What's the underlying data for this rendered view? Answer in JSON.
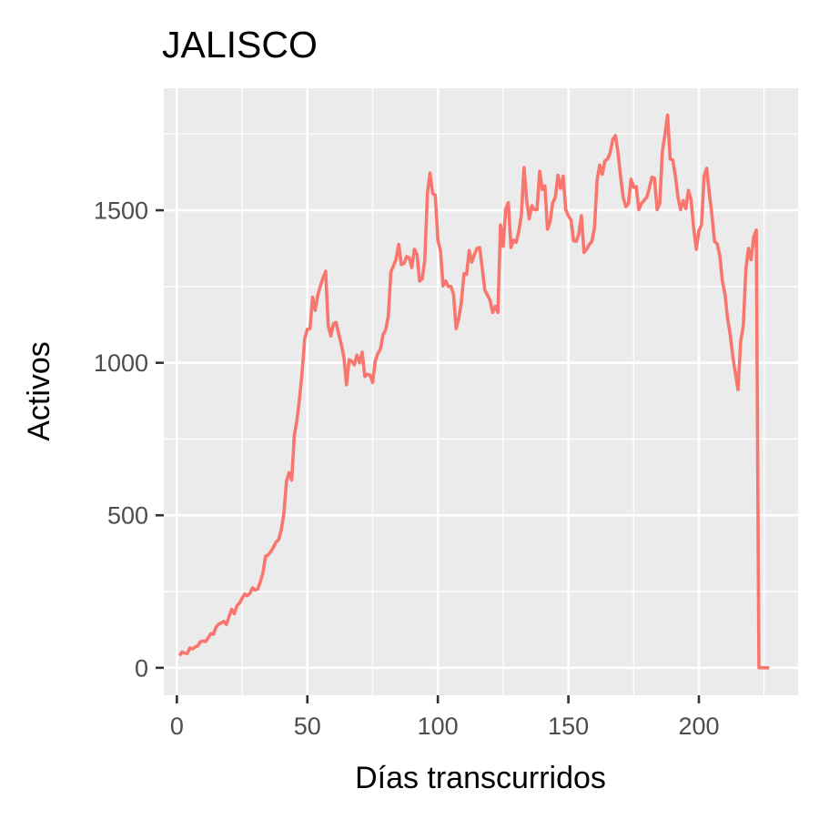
{
  "chart_data": {
    "type": "line",
    "title": "JALISCO",
    "xlabel": "Días transcurridos",
    "ylabel": "Activos",
    "xlim": [
      -5,
      238
    ],
    "ylim": [
      -90,
      1900
    ],
    "xticks": [
      0,
      50,
      100,
      150,
      200
    ],
    "xtick_labels": [
      "0",
      "50",
      "100",
      "150",
      "200"
    ],
    "xminor": [
      25,
      75,
      125,
      175,
      225
    ],
    "yticks": [
      0,
      500,
      1000,
      1500
    ],
    "ytick_labels": [
      "0",
      "500",
      "1000",
      "1500"
    ],
    "yminor": [
      250,
      750,
      1250,
      1750
    ],
    "grid": true,
    "colors": {
      "line": "#f8766d",
      "panel": "#ebebeb",
      "grid": "#ffffff"
    },
    "series": [
      {
        "x": [
          1,
          2,
          3,
          4,
          5,
          6,
          7,
          8,
          9,
          10,
          11,
          12,
          13,
          14,
          15,
          16,
          17,
          18,
          19,
          20,
          21,
          22,
          23,
          24,
          25,
          26,
          27,
          28,
          29,
          30,
          31,
          32,
          33,
          34,
          35,
          36,
          37,
          38,
          39,
          40,
          41,
          42,
          43,
          44,
          45,
          46,
          47,
          48,
          49,
          50,
          51,
          52,
          53,
          54,
          55,
          56,
          57,
          58,
          59,
          60,
          61,
          62,
          63,
          64,
          65,
          66,
          67,
          68,
          69,
          70,
          71,
          72,
          73,
          74,
          75,
          76,
          77,
          78,
          79,
          80,
          81,
          82,
          83,
          84,
          85,
          86,
          87,
          88,
          89,
          90,
          91,
          92,
          93,
          94,
          95,
          96,
          97,
          98,
          99,
          100,
          101,
          102,
          103,
          104,
          105,
          106,
          107,
          108,
          109,
          110,
          111,
          112,
          113,
          114,
          115,
          116,
          117,
          118,
          119,
          120,
          121,
          122,
          123,
          124,
          125,
          126,
          127,
          128,
          129,
          130,
          131,
          132,
          133,
          134,
          135,
          136,
          137,
          138,
          139,
          140,
          141,
          142,
          143,
          144,
          145,
          146,
          147,
          148,
          149,
          150,
          151,
          152,
          153,
          154,
          155,
          156,
          157,
          158,
          159,
          160,
          161,
          162,
          163,
          164,
          165,
          166,
          167,
          168,
          169,
          170,
          171,
          172,
          173,
          174,
          175,
          176,
          177,
          178,
          179,
          180,
          181,
          182,
          183,
          184,
          185,
          186,
          187,
          188,
          189,
          190,
          191,
          192,
          193,
          194,
          195,
          196,
          197,
          198,
          199,
          200,
          201,
          202,
          203,
          204,
          205,
          206,
          207,
          208,
          209,
          210,
          211,
          212,
          213,
          214,
          215,
          216,
          217,
          218,
          219,
          220,
          221,
          222,
          223,
          224,
          225,
          226,
          227
        ],
        "values": [
          40,
          52,
          48,
          47,
          65,
          62,
          68,
          72,
          85,
          88,
          86,
          98,
          112,
          110,
          133,
          143,
          147,
          152,
          142,
          168,
          192,
          177,
          203,
          212,
          228,
          242,
          236,
          244,
          262,
          255,
          258,
          282,
          312,
          366,
          370,
          381,
          395,
          412,
          420,
          452,
          505,
          612,
          640,
          615,
          762,
          812,
          882,
          970,
          1080,
          1110,
          1112,
          1215,
          1172,
          1222,
          1252,
          1278,
          1300,
          1122,
          1088,
          1128,
          1132,
          1095,
          1060,
          1018,
          928,
          1010,
          1005,
          993,
          1025,
          1000,
          1035,
          955,
          962,
          960,
          935,
          1005,
          1030,
          1045,
          1092,
          1108,
          1152,
          1298,
          1318,
          1340,
          1388,
          1322,
          1325,
          1348,
          1345,
          1312,
          1372,
          1356,
          1268,
          1275,
          1338,
          1555,
          1622,
          1555,
          1550,
          1402,
          1368,
          1252,
          1268,
          1250,
          1250,
          1225,
          1112,
          1145,
          1198,
          1292,
          1290,
          1368,
          1330,
          1355,
          1375,
          1378,
          1310,
          1238,
          1222,
          1205,
          1165,
          1185,
          1165,
          1452,
          1382,
          1505,
          1525,
          1378,
          1402,
          1395,
          1430,
          1485,
          1640,
          1535,
          1472,
          1515,
          1502,
          1502,
          1628,
          1568,
          1580,
          1438,
          1462,
          1525,
          1542,
          1615,
          1572,
          1612,
          1502,
          1482,
          1468,
          1400,
          1398,
          1422,
          1482,
          1362,
          1372,
          1388,
          1398,
          1442,
          1598,
          1648,
          1618,
          1662,
          1668,
          1688,
          1732,
          1745,
          1690,
          1612,
          1542,
          1512,
          1522,
          1602,
          1575,
          1578,
          1502,
          1522,
          1532,
          1542,
          1572,
          1608,
          1605,
          1502,
          1522,
          1692,
          1748,
          1812,
          1668,
          1665,
          1612,
          1542,
          1502,
          1532,
          1505,
          1565,
          1535,
          1442,
          1372,
          1432,
          1452,
          1612,
          1638,
          1555,
          1485,
          1398,
          1390,
          1352,
          1268,
          1225,
          1145,
          1092,
          1020,
          965,
          912,
          1070,
          1120,
          1305,
          1375,
          1338,
          1412,
          1435,
          0,
          0,
          0,
          0,
          0
        ]
      }
    ]
  }
}
